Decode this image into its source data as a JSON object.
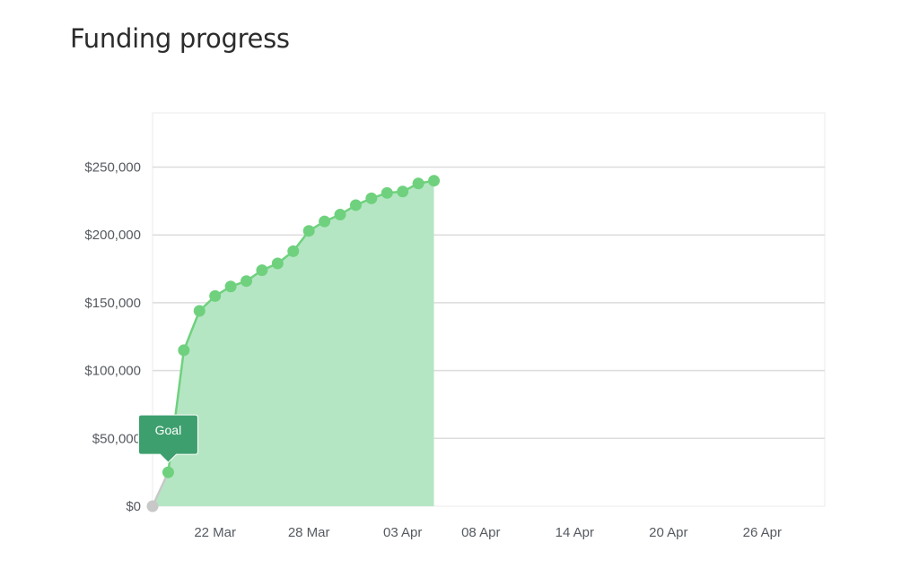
{
  "page": {
    "title": "Funding progress"
  },
  "chart_data": {
    "type": "area",
    "title": "Funding progress",
    "xlabel": "",
    "ylabel": "",
    "x_range": [
      "2018-03-18",
      "2018-04-30"
    ],
    "ylim": [
      0,
      290000
    ],
    "y_ticks": [
      0,
      50000,
      100000,
      150000,
      200000,
      250000
    ],
    "y_tick_labels": [
      "$0",
      "$50,000",
      "$100,000",
      "$150,000",
      "$200,000",
      "$250,000"
    ],
    "x_ticks": [
      "2018-03-22",
      "2018-03-28",
      "2018-04-03",
      "2018-04-08",
      "2018-04-14",
      "2018-04-20",
      "2018-04-26"
    ],
    "x_tick_labels": [
      "22 Mar",
      "28 Mar",
      "03 Apr",
      "08 Apr",
      "14 Apr",
      "20 Apr",
      "26 Apr"
    ],
    "grid": "horizontal",
    "series": [
      {
        "color": "#6fd17e",
        "fill_color": "#b5e6c3",
        "points": [
          {
            "x": "2018-03-19",
            "y": 25000
          },
          {
            "x": "2018-03-20",
            "y": 115000
          },
          {
            "x": "2018-03-21",
            "y": 144000
          },
          {
            "x": "2018-03-22",
            "y": 155000
          },
          {
            "x": "2018-03-23",
            "y": 162000
          },
          {
            "x": "2018-03-24",
            "y": 166000
          },
          {
            "x": "2018-03-25",
            "y": 174000
          },
          {
            "x": "2018-03-26",
            "y": 179000
          },
          {
            "x": "2018-03-27",
            "y": 188000
          },
          {
            "x": "2018-03-28",
            "y": 203000
          },
          {
            "x": "2018-03-29",
            "y": 210000
          },
          {
            "x": "2018-03-30",
            "y": 215000
          },
          {
            "x": "2018-03-31",
            "y": 222000
          },
          {
            "x": "2018-04-01",
            "y": 227000
          },
          {
            "x": "2018-04-02",
            "y": 231000
          },
          {
            "x": "2018-04-03",
            "y": 232000
          },
          {
            "x": "2018-04-04",
            "y": 238000
          },
          {
            "x": "2018-04-05",
            "y": 240000
          }
        ]
      }
    ],
    "start_point": {
      "x": "2018-03-18",
      "y": 0,
      "color": "#c8c8c8"
    },
    "annotation": {
      "label": "Goal",
      "x": "2018-03-19",
      "y": 25000,
      "color": "#3e9f6e"
    }
  }
}
